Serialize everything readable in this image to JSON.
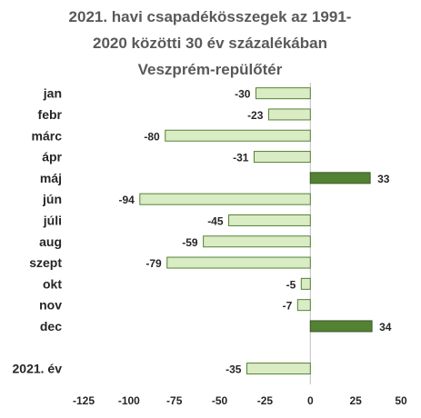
{
  "chart_data": {
    "type": "bar",
    "orientation": "horizontal",
    "title": [
      "2021. havi csapadékösszegek  az 1991-",
      "2020 közötti  30 év százalékában",
      "Veszprém-repülőtér"
    ],
    "categories": [
      "jan",
      "febr",
      "márc",
      "ápr",
      "máj",
      "jún",
      "júli",
      "aug",
      "szept",
      "okt",
      "nov",
      "dec",
      "",
      "2021. év"
    ],
    "values": [
      -30,
      -23,
      -80,
      -31,
      33,
      -94,
      -45,
      -59,
      -79,
      -5,
      -7,
      34,
      null,
      -35
    ],
    "xlim": [
      -125,
      50
    ],
    "xticks": [
      -125,
      -100,
      -75,
      -50,
      -25,
      0,
      25,
      50
    ],
    "xlabel": "",
    "ylabel": "",
    "grid": false,
    "legend": "none",
    "data_labels": true,
    "colors": {
      "negative_fill": "#d9ecc4",
      "negative_stroke": "#548235",
      "positive_fill": "#548235",
      "positive_stroke": "#385723",
      "axis": "#bfbfbf"
    }
  }
}
